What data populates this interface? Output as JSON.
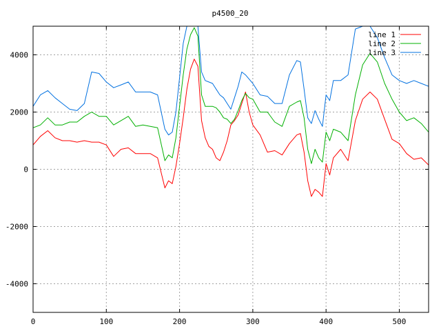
{
  "chart_data": {
    "type": "line",
    "title": "p4500_20",
    "xlabel": "",
    "ylabel": "",
    "xlim": [
      0,
      540
    ],
    "ylim": [
      -5000,
      5000
    ],
    "x_ticks": [
      0,
      100,
      200,
      300,
      400,
      500
    ],
    "y_ticks": [
      -4000,
      -2000,
      0,
      2000,
      4000
    ],
    "grid": true,
    "legend_position": "top-right",
    "series": [
      {
        "name": "line 1",
        "color": "#ff0000",
        "x": [
          0,
          10,
          20,
          30,
          40,
          50,
          60,
          70,
          80,
          90,
          100,
          110,
          120,
          130,
          140,
          150,
          160,
          170,
          180,
          185,
          190,
          195,
          200,
          205,
          210,
          215,
          220,
          225,
          230,
          235,
          240,
          245,
          250,
          255,
          260,
          265,
          270,
          275,
          280,
          285,
          290,
          295,
          300,
          310,
          320,
          330,
          340,
          350,
          360,
          365,
          370,
          375,
          380,
          385,
          390,
          395,
          400,
          405,
          410,
          420,
          430,
          440,
          450,
          460,
          470,
          480,
          490,
          500,
          510,
          520,
          530,
          540
        ],
        "values": [
          850,
          1150,
          1350,
          1100,
          1000,
          1000,
          950,
          1000,
          950,
          950,
          850,
          450,
          700,
          750,
          550,
          550,
          550,
          400,
          -650,
          -400,
          -500,
          100,
          900,
          1800,
          2800,
          3500,
          3850,
          3600,
          1700,
          1100,
          800,
          700,
          400,
          300,
          600,
          1000,
          1550,
          1700,
          1900,
          2300,
          2700,
          2000,
          1550,
          1200,
          600,
          650,
          500,
          900,
          1200,
          1250,
          600,
          -400,
          -950,
          -700,
          -800,
          -950,
          200,
          -200,
          400,
          700,
          300,
          1700,
          2450,
          2700,
          2450,
          1750,
          1050,
          900,
          550,
          350,
          400,
          150
        ]
      },
      {
        "name": "line 2",
        "color": "#00b000",
        "x": [
          0,
          10,
          20,
          30,
          40,
          50,
          60,
          70,
          80,
          90,
          100,
          110,
          120,
          130,
          140,
          150,
          160,
          170,
          180,
          185,
          190,
          195,
          200,
          205,
          210,
          215,
          220,
          225,
          230,
          235,
          240,
          245,
          250,
          255,
          260,
          265,
          270,
          275,
          280,
          285,
          290,
          295,
          300,
          310,
          320,
          330,
          340,
          350,
          360,
          365,
          370,
          375,
          380,
          385,
          390,
          395,
          400,
          405,
          410,
          420,
          430,
          440,
          450,
          460,
          470,
          480,
          490,
          500,
          510,
          520,
          530,
          540
        ],
        "values": [
          1450,
          1550,
          1800,
          1550,
          1550,
          1650,
          1650,
          1850,
          2000,
          1850,
          1850,
          1550,
          1700,
          1850,
          1500,
          1550,
          1500,
          1450,
          300,
          500,
          400,
          1100,
          2200,
          3300,
          4200,
          4700,
          4950,
          4650,
          2600,
          2200,
          2200,
          2200,
          2150,
          2000,
          1800,
          1750,
          1600,
          1750,
          2050,
          2400,
          2650,
          2500,
          2450,
          2000,
          2000,
          1650,
          1500,
          2200,
          2350,
          2400,
          1800,
          700,
          200,
          700,
          400,
          250,
          1300,
          1000,
          1400,
          1300,
          1000,
          2600,
          3650,
          4050,
          3750,
          3000,
          2450,
          2000,
          1700,
          1800,
          1600,
          1300
        ]
      },
      {
        "name": "line 3",
        "color": "#0070e0",
        "x": [
          0,
          10,
          20,
          30,
          40,
          50,
          60,
          70,
          80,
          90,
          100,
          110,
          120,
          130,
          140,
          150,
          160,
          170,
          180,
          185,
          190,
          195,
          200,
          205,
          210,
          215,
          220,
          225,
          230,
          235,
          240,
          245,
          250,
          255,
          260,
          265,
          270,
          275,
          280,
          285,
          290,
          295,
          300,
          310,
          320,
          330,
          340,
          350,
          360,
          365,
          370,
          375,
          380,
          385,
          390,
          395,
          400,
          405,
          410,
          420,
          430,
          440,
          450,
          460,
          470,
          480,
          490,
          500,
          510,
          520,
          530,
          540
        ],
        "values": [
          2200,
          2600,
          2750,
          2500,
          2300,
          2100,
          2050,
          2300,
          3400,
          3350,
          3050,
          2850,
          2950,
          3050,
          2700,
          2700,
          2700,
          2600,
          1400,
          1200,
          1300,
          2000,
          3200,
          4400,
          5000,
          5000,
          5000,
          5000,
          3400,
          3100,
          3050,
          3000,
          2800,
          2600,
          2500,
          2300,
          2100,
          2500,
          2900,
          3400,
          3300,
          3150,
          3000,
          2600,
          2550,
          2300,
          2300,
          3300,
          3800,
          3750,
          2800,
          1800,
          1600,
          2050,
          1750,
          1500,
          2600,
          2400,
          3100,
          3100,
          3300,
          4900,
          5000,
          5000,
          4600,
          3900,
          3300,
          3100,
          3000,
          3100,
          3000,
          2900
        ]
      }
    ]
  }
}
